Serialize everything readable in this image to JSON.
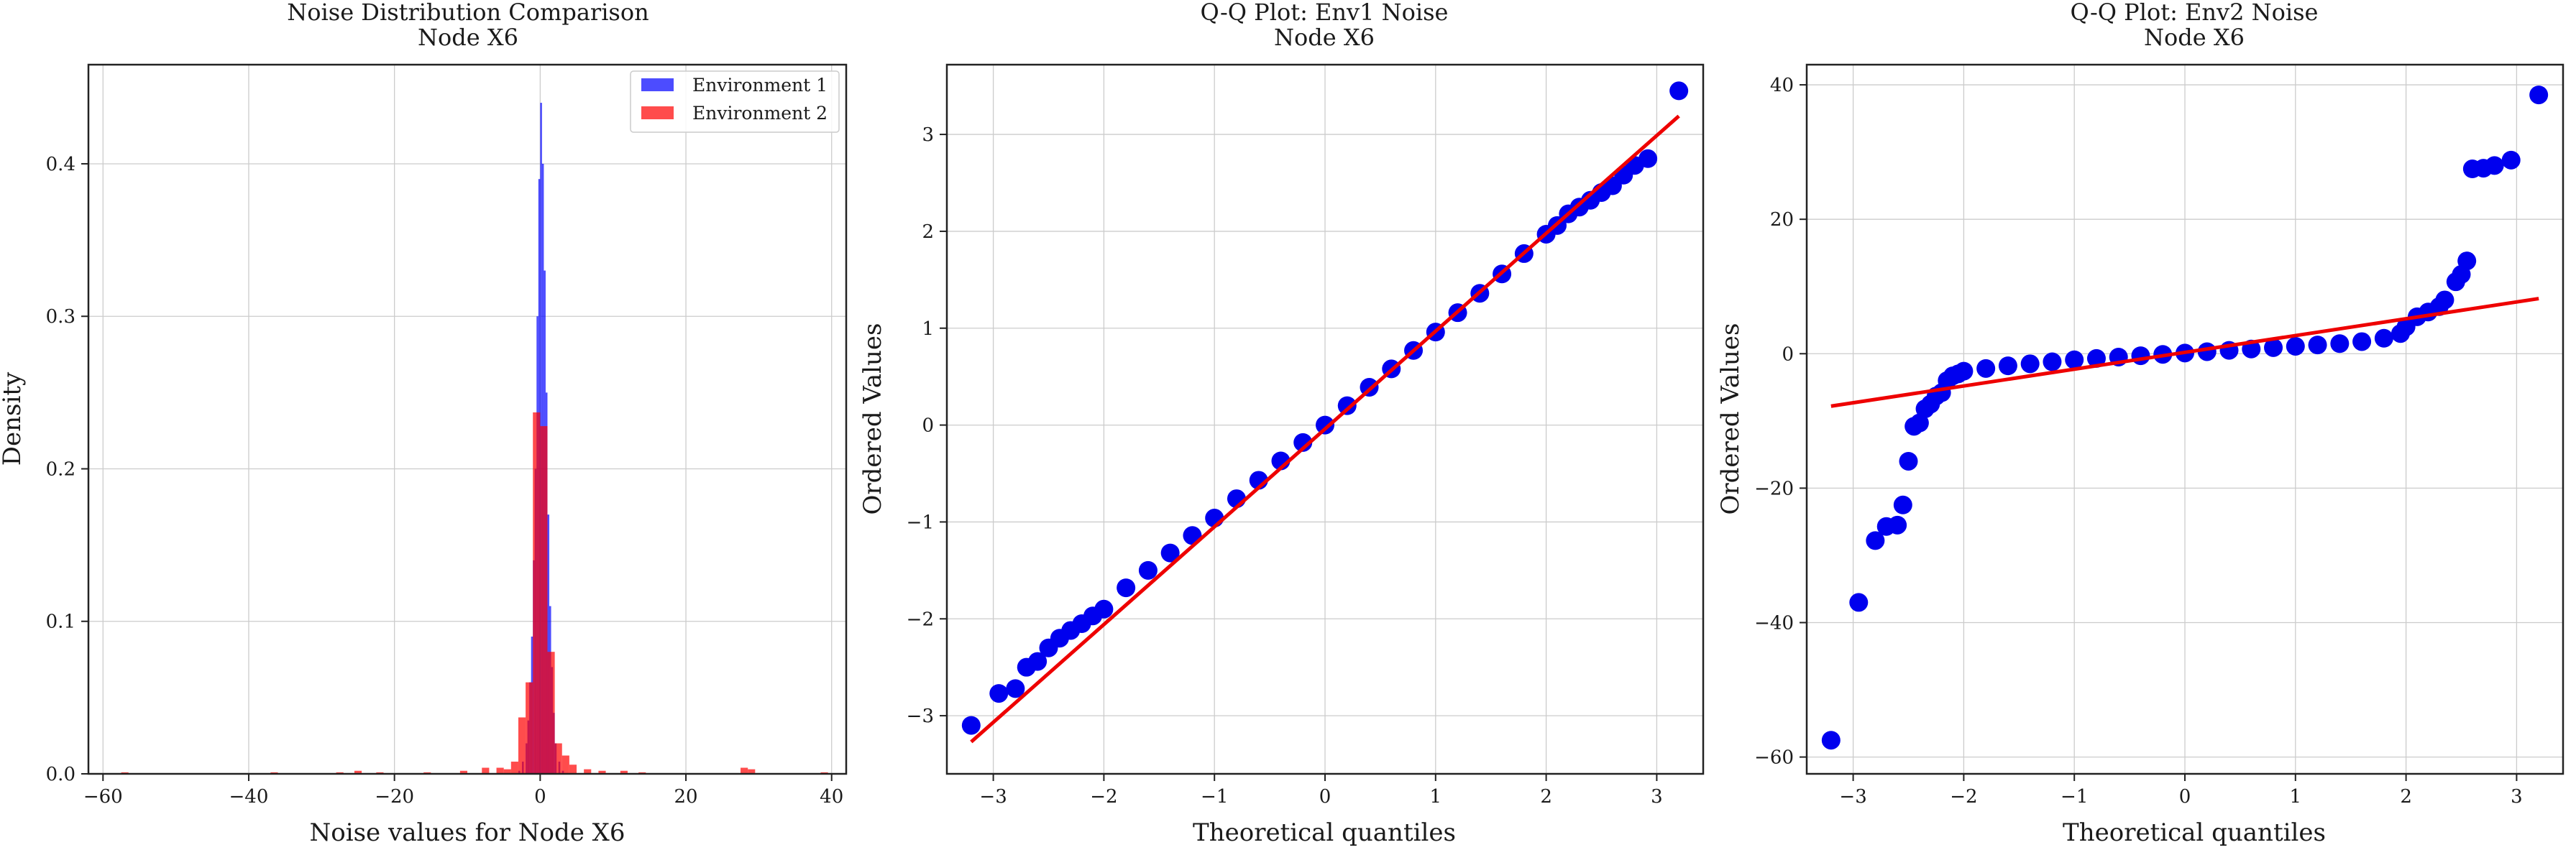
{
  "colors": {
    "env1": "#0000ff",
    "env2": "#ff0000",
    "grid": "#cccccc",
    "qq_points": "#0000ee",
    "qq_line": "#ee0000"
  },
  "chart_data": [
    {
      "type": "histogram",
      "title": "Noise Distribution Comparison",
      "subtitle": "Node X6",
      "xlabel": "Noise values for Node X6",
      "ylabel": "Density",
      "xlim": [
        -62,
        42
      ],
      "ylim": [
        0,
        0.465
      ],
      "xticks": [
        -60,
        -40,
        -20,
        0,
        20,
        40
      ],
      "xtick_labels": [
        "−60",
        "−40",
        "−20",
        "0",
        "20",
        "40"
      ],
      "yticks": [
        0.0,
        0.1,
        0.2,
        0.3,
        0.4
      ],
      "ytick_labels": [
        "0.0",
        "0.1",
        "0.2",
        "0.3",
        "0.4"
      ],
      "grid": true,
      "legend": {
        "placement": "top-right",
        "entries": [
          "Environment 1",
          "Environment 2"
        ]
      },
      "series": [
        {
          "name": "Environment 1",
          "color": "#0000ff",
          "opacity": 0.7,
          "bin_width": 0.25,
          "bins": [
            [
              -3.0,
              0.002
            ],
            [
              -2.5,
              0.008
            ],
            [
              -2.0,
              0.02
            ],
            [
              -1.75,
              0.035
            ],
            [
              -1.5,
              0.06
            ],
            [
              -1.25,
              0.09
            ],
            [
              -1.0,
              0.14
            ],
            [
              -0.75,
              0.2
            ],
            [
              -0.5,
              0.3
            ],
            [
              -0.25,
              0.39
            ],
            [
              0.0,
              0.44
            ],
            [
              0.25,
              0.4
            ],
            [
              0.5,
              0.33
            ],
            [
              0.75,
              0.25
            ],
            [
              1.0,
              0.17
            ],
            [
              1.25,
              0.11
            ],
            [
              1.5,
              0.07
            ],
            [
              1.75,
              0.04
            ],
            [
              2.0,
              0.02
            ],
            [
              2.5,
              0.008
            ],
            [
              3.0,
              0.002
            ]
          ]
        },
        {
          "name": "Environment 2",
          "color": "#ff0000",
          "opacity": 0.7,
          "bin_width": 1.0,
          "bins": [
            [
              -57.5,
              0.001
            ],
            [
              -37.0,
              0.001
            ],
            [
              -28.0,
              0.001
            ],
            [
              -25.5,
              0.002
            ],
            [
              -22.5,
              0.001
            ],
            [
              -16.0,
              0.001
            ],
            [
              -11.0,
              0.002
            ],
            [
              -8.0,
              0.004
            ],
            [
              -6.0,
              0.004
            ],
            [
              -5.0,
              0.003
            ],
            [
              -4.0,
              0.008
            ],
            [
              -3.0,
              0.037
            ],
            [
              -2.0,
              0.06
            ],
            [
              -1.0,
              0.237
            ],
            [
              0.0,
              0.228
            ],
            [
              1.0,
              0.08
            ],
            [
              2.0,
              0.02
            ],
            [
              3.0,
              0.012
            ],
            [
              4.0,
              0.006
            ],
            [
              6.0,
              0.003
            ],
            [
              8.0,
              0.002
            ],
            [
              11.0,
              0.002
            ],
            [
              13.5,
              0.001
            ],
            [
              27.5,
              0.004
            ],
            [
              28.5,
              0.003
            ],
            [
              38.5,
              0.001
            ]
          ]
        }
      ]
    },
    {
      "type": "scatter",
      "title": "Q-Q Plot: Env1 Noise",
      "subtitle": "Node X6",
      "xlabel": "Theoretical quantiles",
      "ylabel": "Ordered Values",
      "xlim": [
        -3.42,
        3.42
      ],
      "ylim": [
        -3.6,
        3.72
      ],
      "xticks": [
        -3,
        -2,
        -1,
        0,
        1,
        2,
        3
      ],
      "xtick_labels": [
        "−3",
        "−2",
        "−1",
        "0",
        "1",
        "2",
        "3"
      ],
      "yticks": [
        -3,
        -2,
        -1,
        0,
        1,
        2,
        3
      ],
      "ytick_labels": [
        "−3",
        "−2",
        "−1",
        "0",
        "1",
        "2",
        "3"
      ],
      "grid": true,
      "points": [
        [
          -3.2,
          -3.1
        ],
        [
          -2.95,
          -2.77
        ],
        [
          -2.8,
          -2.72
        ],
        [
          -2.7,
          -2.5
        ],
        [
          -2.6,
          -2.44
        ],
        [
          -2.5,
          -2.3
        ],
        [
          -2.4,
          -2.2
        ],
        [
          -2.3,
          -2.12
        ],
        [
          -2.2,
          -2.05
        ],
        [
          -2.1,
          -1.97
        ],
        [
          -2.0,
          -1.9
        ],
        [
          -1.8,
          -1.68
        ],
        [
          -1.6,
          -1.5
        ],
        [
          -1.4,
          -1.32
        ],
        [
          -1.2,
          -1.14
        ],
        [
          -1.0,
          -0.96
        ],
        [
          -0.8,
          -0.76
        ],
        [
          -0.6,
          -0.57
        ],
        [
          -0.4,
          -0.37
        ],
        [
          -0.2,
          -0.18
        ],
        [
          0.0,
          0.0
        ],
        [
          0.2,
          0.2
        ],
        [
          0.4,
          0.39
        ],
        [
          0.6,
          0.58
        ],
        [
          0.8,
          0.77
        ],
        [
          1.0,
          0.96
        ],
        [
          1.2,
          1.16
        ],
        [
          1.4,
          1.36
        ],
        [
          1.6,
          1.56
        ],
        [
          1.8,
          1.77
        ],
        [
          2.0,
          1.97
        ],
        [
          2.1,
          2.06
        ],
        [
          2.2,
          2.18
        ],
        [
          2.3,
          2.25
        ],
        [
          2.4,
          2.32
        ],
        [
          2.5,
          2.4
        ],
        [
          2.6,
          2.47
        ],
        [
          2.7,
          2.58
        ],
        [
          2.8,
          2.68
        ],
        [
          2.92,
          2.75
        ],
        [
          3.2,
          3.45
        ]
      ],
      "fit_line": {
        "x": [
          -3.2,
          3.2
        ],
        "y": [
          -3.27,
          3.19
        ]
      }
    },
    {
      "type": "scatter",
      "title": "Q-Q Plot: Env2 Noise",
      "subtitle": "Node X6",
      "xlabel": "Theoretical quantiles",
      "ylabel": "Ordered Values",
      "xlim": [
        -3.42,
        3.42
      ],
      "ylim": [
        -62.5,
        43
      ],
      "xticks": [
        -3,
        -2,
        -1,
        0,
        1,
        2,
        3
      ],
      "xtick_labels": [
        "−3",
        "−2",
        "−1",
        "0",
        "1",
        "2",
        "3"
      ],
      "yticks": [
        -60,
        -40,
        -20,
        0,
        20,
        40
      ],
      "ytick_labels": [
        "−60",
        "−40",
        "−20",
        "0",
        "20",
        "40"
      ],
      "grid": true,
      "points": [
        [
          -3.2,
          -57.5
        ],
        [
          -2.95,
          -37
        ],
        [
          -2.8,
          -27.8
        ],
        [
          -2.7,
          -25.7
        ],
        [
          -2.6,
          -25.5
        ],
        [
          -2.55,
          -22.5
        ],
        [
          -2.5,
          -16
        ],
        [
          -2.45,
          -10.8
        ],
        [
          -2.4,
          -10.3
        ],
        [
          -2.35,
          -8.2
        ],
        [
          -2.3,
          -7.5
        ],
        [
          -2.25,
          -6.3
        ],
        [
          -2.2,
          -5.8
        ],
        [
          -2.15,
          -4.0
        ],
        [
          -2.1,
          -3.3
        ],
        [
          -2.05,
          -3.0
        ],
        [
          -2.0,
          -2.6
        ],
        [
          -1.8,
          -2.2
        ],
        [
          -1.6,
          -1.8
        ],
        [
          -1.4,
          -1.5
        ],
        [
          -1.2,
          -1.2
        ],
        [
          -1.0,
          -0.9
        ],
        [
          -0.8,
          -0.7
        ],
        [
          -0.6,
          -0.5
        ],
        [
          -0.4,
          -0.3
        ],
        [
          -0.2,
          -0.1
        ],
        [
          0.0,
          0.1
        ],
        [
          0.2,
          0.3
        ],
        [
          0.4,
          0.5
        ],
        [
          0.6,
          0.7
        ],
        [
          0.8,
          0.9
        ],
        [
          1.0,
          1.1
        ],
        [
          1.2,
          1.3
        ],
        [
          1.4,
          1.5
        ],
        [
          1.6,
          1.8
        ],
        [
          1.8,
          2.3
        ],
        [
          1.95,
          3.0
        ],
        [
          2.0,
          4.0
        ],
        [
          2.1,
          5.5
        ],
        [
          2.2,
          6.2
        ],
        [
          2.3,
          7.0
        ],
        [
          2.35,
          8.0
        ],
        [
          2.45,
          10.7
        ],
        [
          2.5,
          11.8
        ],
        [
          2.55,
          13.8
        ],
        [
          2.6,
          27.5
        ],
        [
          2.7,
          27.6
        ],
        [
          2.8,
          28
        ],
        [
          2.95,
          28.8
        ],
        [
          3.2,
          38.5
        ]
      ],
      "fit_line": {
        "x": [
          -3.2,
          3.2
        ],
        "y": [
          -7.8,
          8.2
        ]
      }
    }
  ]
}
